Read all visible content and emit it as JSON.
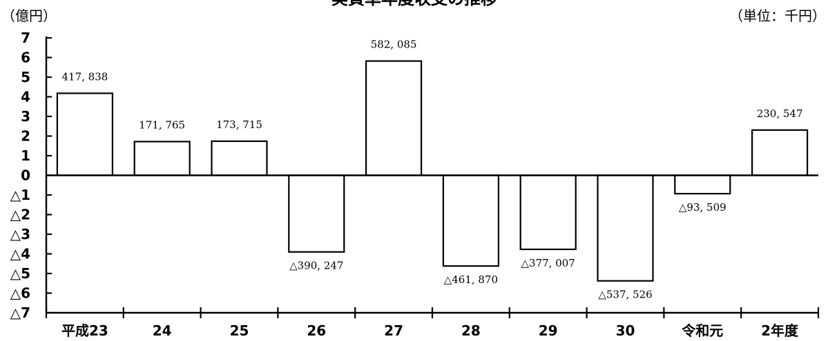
{
  "chart_data": {
    "type": "bar",
    "title": "実質単年度収支の推移",
    "ylabel": "（億円）",
    "unit_label": "（単位：千円）",
    "ylim": [
      -7,
      7
    ],
    "y_ticks": [
      {
        "value": 7,
        "label": "7"
      },
      {
        "value": 6,
        "label": "6"
      },
      {
        "value": 5,
        "label": "5"
      },
      {
        "value": 4,
        "label": "4"
      },
      {
        "value": 3,
        "label": "3"
      },
      {
        "value": 2,
        "label": "2"
      },
      {
        "value": 1,
        "label": "1"
      },
      {
        "value": 0,
        "label": "0"
      },
      {
        "value": -1,
        "label": "△1"
      },
      {
        "value": -2,
        "label": "△2"
      },
      {
        "value": -3,
        "label": "△3"
      },
      {
        "value": -4,
        "label": "△4"
      },
      {
        "value": -5,
        "label": "△5"
      },
      {
        "value": -6,
        "label": "△6"
      },
      {
        "value": -7,
        "label": "△7"
      }
    ],
    "categories": [
      "平成23",
      "24",
      "25",
      "26",
      "27",
      "28",
      "29",
      "30",
      "令和元",
      "2年度"
    ],
    "values": [
      417838,
      171765,
      173715,
      -390247,
      582085,
      -461870,
      -377007,
      -537526,
      -93509,
      230547
    ],
    "data_labels": [
      "417, 838",
      "171, 765",
      "173, 715",
      "△390, 247",
      "582, 085",
      "△461, 870",
      "△377, 007",
      "△537, 526",
      "△93, 509",
      "230, 547"
    ],
    "grid": false,
    "legend": "none"
  }
}
